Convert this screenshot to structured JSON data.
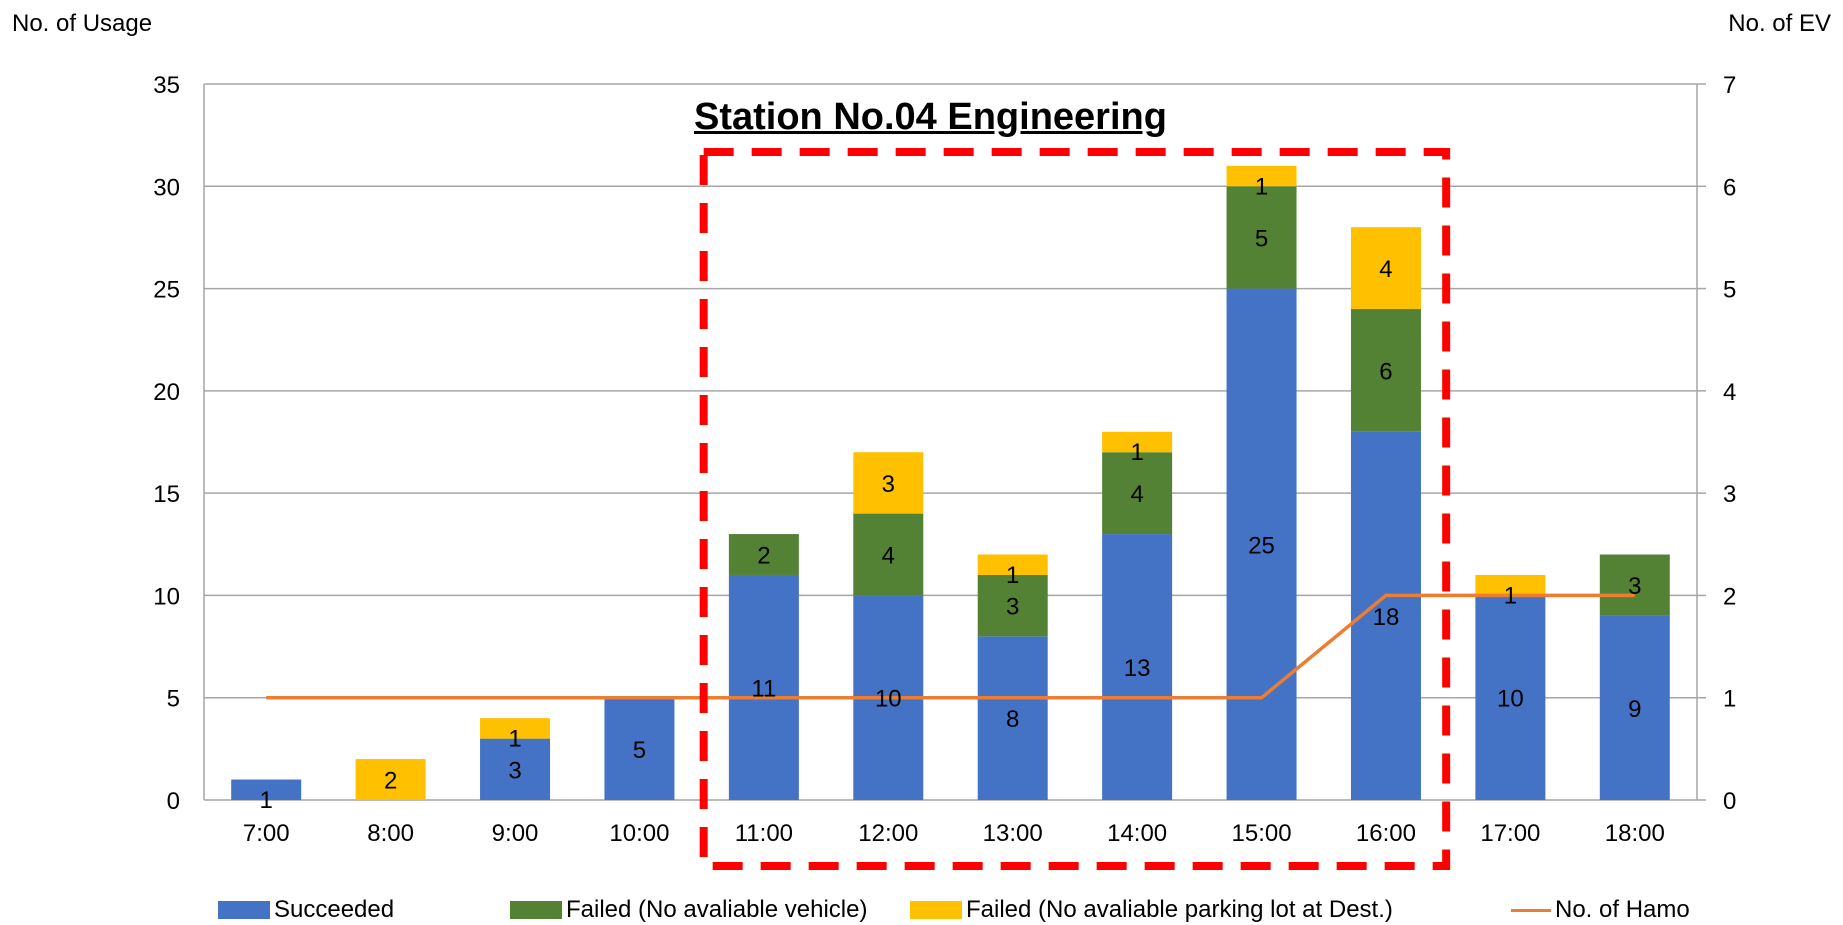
{
  "chart_data": {
    "type": "bar",
    "title": "Station No.04 Engineering",
    "ylabel_left": "No. of Usage",
    "ylabel_right": "No. of EV",
    "categories": [
      "7:00",
      "8:00",
      "9:00",
      "10:00",
      "11:00",
      "12:00",
      "13:00",
      "14:00",
      "15:00",
      "16:00",
      "17:00",
      "18:00"
    ],
    "ylim_left": [
      0,
      35
    ],
    "yticks_left": [
      0,
      5,
      10,
      15,
      20,
      25,
      30,
      35
    ],
    "ylim_right": [
      0,
      7
    ],
    "yticks_right": [
      0,
      1,
      2,
      3,
      4,
      5,
      6,
      7
    ],
    "stacked": true,
    "series": [
      {
        "name": "Succeeded",
        "color": "#4472C4",
        "values": [
          1,
          0,
          3,
          5,
          11,
          10,
          8,
          13,
          25,
          18,
          10,
          9
        ]
      },
      {
        "name": "Failed (No avaliable vehicle)",
        "color": "#548235",
        "values": [
          0,
          0,
          0,
          0,
          2,
          4,
          3,
          4,
          5,
          6,
          0,
          3
        ]
      },
      {
        "name": "Failed (No avaliable parking lot at Dest.)",
        "color": "#FFC000",
        "values": [
          0,
          2,
          1,
          0,
          0,
          3,
          1,
          1,
          1,
          4,
          1,
          0
        ]
      }
    ],
    "line_series": {
      "name": "No. of Hamo",
      "color": "#ED7D31",
      "axis": "right",
      "values": [
        1,
        1,
        1,
        1,
        1,
        1,
        1,
        1,
        1,
        2,
        2,
        2
      ]
    },
    "highlight_box": {
      "from": "11:00",
      "to": "16:00",
      "color": "#FF0000",
      "style": "dashed"
    },
    "grid": true,
    "legend_position": "bottom"
  }
}
